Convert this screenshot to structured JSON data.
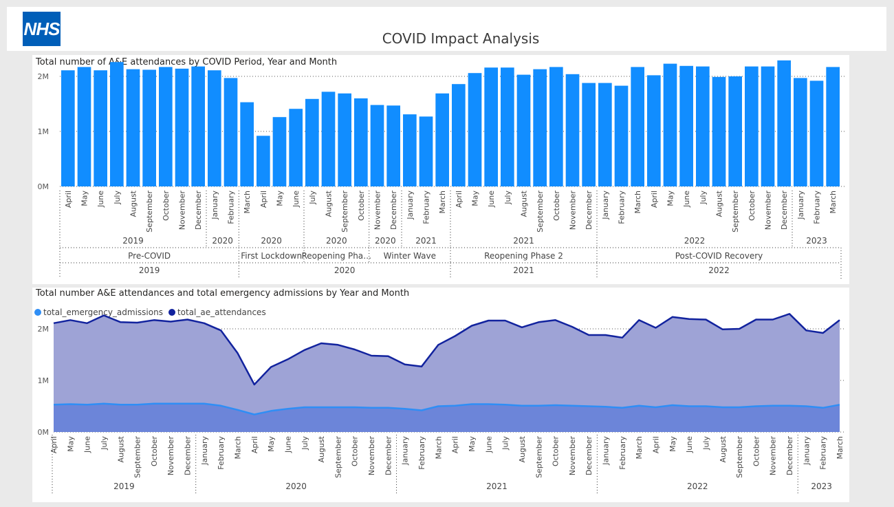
{
  "header": {
    "logo_text": "NHS",
    "title": "COVID Impact Analysis"
  },
  "colors": {
    "bar": "#118dff",
    "attendance_line": "#12239e",
    "attendance_area": "#9ea3d6",
    "admission_line": "#2f8ef5",
    "admission_area": "#6c85d9",
    "nhs_blue": "#005eb8"
  },
  "chart1": {
    "title": "Total number of A&E attendances by COVID Period, Year and Month",
    "yticks": [
      "0M",
      "1M",
      "2M"
    ]
  },
  "chart2": {
    "title": "Total number A&E attendances and total emergency admissions by Year and Month",
    "legend": [
      "total_emergency_admissions",
      "total_ae_attendances"
    ],
    "yticks": [
      "0M",
      "1M",
      "2M"
    ]
  },
  "chart_data": [
    {
      "type": "bar",
      "title": "Total number of A&E attendances by COVID Period, Year and Month",
      "ylim": [
        0,
        2400000
      ],
      "categories": [
        "April",
        "May",
        "June",
        "July",
        "August",
        "September",
        "October",
        "November",
        "December",
        "January",
        "February",
        "March",
        "April",
        "May",
        "June",
        "July",
        "August",
        "September",
        "October",
        "November",
        "December",
        "January",
        "February",
        "March",
        "April",
        "May",
        "June",
        "July",
        "August",
        "September",
        "October",
        "November",
        "December",
        "January",
        "February",
        "March",
        "April",
        "May",
        "June",
        "July",
        "August",
        "September",
        "October",
        "November",
        "December",
        "January",
        "February",
        "March"
      ],
      "values": [
        2110000,
        2170000,
        2110000,
        2260000,
        2130000,
        2120000,
        2170000,
        2140000,
        2180000,
        2110000,
        1970000,
        1530000,
        920000,
        1260000,
        1410000,
        1590000,
        1720000,
        1690000,
        1600000,
        1480000,
        1470000,
        1310000,
        1270000,
        1690000,
        1860000,
        2060000,
        2160000,
        2160000,
        2030000,
        2130000,
        2170000,
        2040000,
        1880000,
        1880000,
        1830000,
        2170000,
        2020000,
        2230000,
        2190000,
        2180000,
        1990000,
        2000000,
        2180000,
        2180000,
        2290000,
        1970000,
        1920000,
        2170000
      ],
      "year_groups": [
        {
          "label": "2019",
          "start": 0,
          "end": 8
        },
        {
          "label": "2020",
          "start": 9,
          "end": 10
        },
        {
          "label": "2020",
          "start": 11,
          "end": 14
        },
        {
          "label": "2020",
          "start": 15,
          "end": 18
        },
        {
          "label": "2020",
          "start": 19,
          "end": 20
        },
        {
          "label": "2021",
          "start": 21,
          "end": 23
        },
        {
          "label": "2021",
          "start": 24,
          "end": 32
        },
        {
          "label": "2022",
          "start": 33,
          "end": 44
        },
        {
          "label": "2023",
          "start": 45,
          "end": 47
        }
      ],
      "period_groups": [
        {
          "label": "Pre-COVID",
          "start": 0,
          "end": 10
        },
        {
          "label": "First Lockdown",
          "start": 11,
          "end": 14
        },
        {
          "label": "Reopening Pha…",
          "start": 15,
          "end": 18
        },
        {
          "label": "Winter Wave",
          "start": 19,
          "end": 23
        },
        {
          "label": "Reopening Phase 2",
          "start": 24,
          "end": 32
        },
        {
          "label": "Post-COVID Recovery",
          "start": 33,
          "end": 47
        }
      ],
      "bottom_year_groups": [
        {
          "label": "2019",
          "start": 0,
          "end": 10
        },
        {
          "label": "2020",
          "start": 11,
          "end": 23
        },
        {
          "label": "2021",
          "start": 24,
          "end": 32
        },
        {
          "label": "2022",
          "start": 33,
          "end": 47
        }
      ]
    },
    {
      "type": "area",
      "title": "Total number A&E attendances and total emergency admissions by Year and Month",
      "ylim": [
        0,
        2400000
      ],
      "categories": [
        "April",
        "May",
        "June",
        "July",
        "August",
        "September",
        "October",
        "November",
        "December",
        "January",
        "February",
        "March",
        "April",
        "May",
        "June",
        "July",
        "August",
        "September",
        "October",
        "November",
        "December",
        "January",
        "February",
        "March",
        "April",
        "May",
        "June",
        "July",
        "August",
        "September",
        "October",
        "November",
        "December",
        "January",
        "February",
        "March",
        "April",
        "May",
        "June",
        "July",
        "August",
        "September",
        "October",
        "November",
        "December",
        "January",
        "February",
        "March"
      ],
      "series": [
        {
          "name": "total_ae_attendances",
          "values": [
            2110000,
            2170000,
            2110000,
            2260000,
            2130000,
            2120000,
            2170000,
            2140000,
            2180000,
            2110000,
            1970000,
            1530000,
            920000,
            1260000,
            1410000,
            1590000,
            1720000,
            1690000,
            1600000,
            1480000,
            1470000,
            1310000,
            1270000,
            1690000,
            1860000,
            2060000,
            2160000,
            2160000,
            2030000,
            2130000,
            2170000,
            2040000,
            1880000,
            1880000,
            1830000,
            2170000,
            2020000,
            2230000,
            2190000,
            2180000,
            1990000,
            2000000,
            2180000,
            2180000,
            2290000,
            1970000,
            1920000,
            2170000
          ]
        },
        {
          "name": "total_emergency_admissions",
          "values": [
            530000,
            540000,
            530000,
            550000,
            530000,
            530000,
            550000,
            550000,
            550000,
            550000,
            510000,
            430000,
            340000,
            410000,
            450000,
            480000,
            480000,
            480000,
            480000,
            470000,
            470000,
            450000,
            420000,
            500000,
            510000,
            540000,
            540000,
            530000,
            510000,
            510000,
            520000,
            510000,
            500000,
            490000,
            470000,
            510000,
            480000,
            520000,
            500000,
            500000,
            480000,
            480000,
            500000,
            510000,
            510000,
            500000,
            470000,
            530000
          ]
        }
      ],
      "year_groups": [
        {
          "label": "2019",
          "start": 0,
          "end": 8
        },
        {
          "label": "2020",
          "start": 9,
          "end": 20
        },
        {
          "label": "2021",
          "start": 21,
          "end": 32
        },
        {
          "label": "2022",
          "start": 33,
          "end": 44
        },
        {
          "label": "2023",
          "start": 45,
          "end": 47
        }
      ]
    }
  ]
}
